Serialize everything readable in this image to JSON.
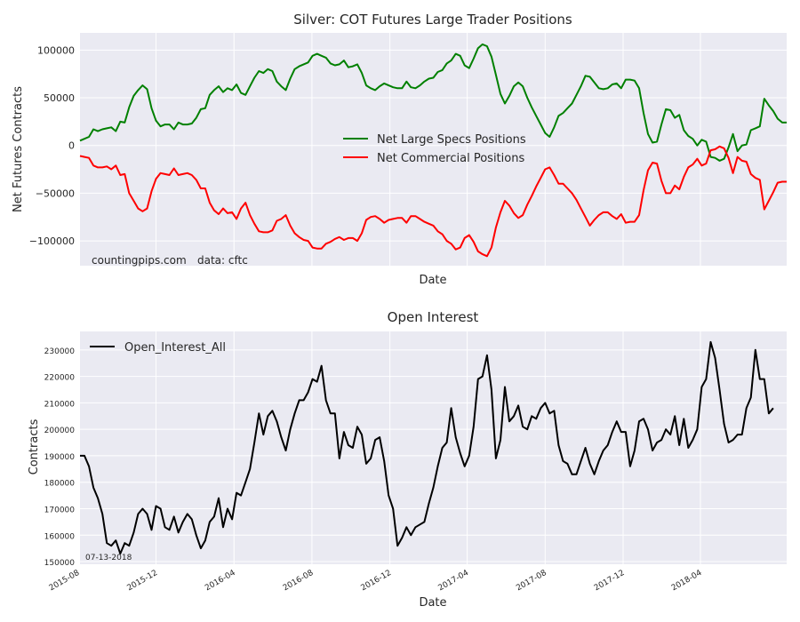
{
  "chart_data": [
    {
      "type": "line",
      "title": "Silver: COT Futures Large Trader Positions",
      "xlabel": "Date",
      "ylabel": "Net Futures Contracts",
      "ylim": [
        -126000,
        118000
      ],
      "yticks": [
        -100000,
        -50000,
        0,
        50000,
        100000
      ],
      "grid": true,
      "legend": "center",
      "annotations": [
        "countingpips.com",
        "data: cftc"
      ],
      "x_start": "2015-08-04",
      "x_step_days": 7,
      "series": [
        {
          "name": "Net Large Specs Positions",
          "color": "#008000",
          "values": [
            5000,
            7000,
            9000,
            17000,
            15000,
            17000,
            18000,
            19000,
            15000,
            25000,
            24000,
            40000,
            52000,
            58000,
            63000,
            59000,
            39000,
            26000,
            20000,
            22000,
            22000,
            17000,
            24000,
            22000,
            22000,
            23000,
            29000,
            38000,
            39000,
            53000,
            58000,
            62000,
            56000,
            60000,
            58000,
            64000,
            55000,
            53000,
            62000,
            71000,
            78000,
            76000,
            80000,
            78000,
            67000,
            62000,
            58000,
            70000,
            80000,
            83000,
            85000,
            87000,
            94000,
            96000,
            94000,
            92000,
            86000,
            84000,
            85000,
            89000,
            82000,
            83000,
            85000,
            76000,
            63000,
            60000,
            58000,
            62000,
            65000,
            63000,
            61000,
            60000,
            60000,
            67000,
            61000,
            60000,
            63000,
            67000,
            70000,
            71000,
            77000,
            79000,
            86000,
            89000,
            96000,
            94000,
            84000,
            81000,
            91000,
            102000,
            106000,
            104000,
            93000,
            74000,
            54000,
            44000,
            52000,
            62000,
            66000,
            62000,
            50000,
            40000,
            31000,
            22000,
            13000,
            9000,
            19000,
            31000,
            34000,
            39000,
            44000,
            53000,
            62000,
            73000,
            72000,
            66000,
            60000,
            59000,
            60000,
            64000,
            65000,
            60000,
            69000,
            69000,
            68000,
            60000,
            34000,
            12000,
            3000,
            4000,
            22000,
            38000,
            37000,
            29000,
            32000,
            16000,
            10000,
            7000,
            0,
            6000,
            4000,
            -12000,
            -13000,
            -16000,
            -14000,
            -2000,
            12000,
            -6000,
            0,
            1000,
            16000,
            18000,
            20000,
            49000,
            42000,
            36000,
            28000,
            24000,
            24000
          ]
        },
        {
          "name": "Net Commercial Positions",
          "color": "#ff0000",
          "values": [
            -11000,
            -12000,
            -13000,
            -21000,
            -23000,
            -23000,
            -22000,
            -25000,
            -21000,
            -31000,
            -30000,
            -50000,
            -58000,
            -66000,
            -69000,
            -66000,
            -48000,
            -35000,
            -29000,
            -30000,
            -31000,
            -24000,
            -31000,
            -30000,
            -29000,
            -31000,
            -36000,
            -45000,
            -45000,
            -60000,
            -68000,
            -72000,
            -66000,
            -71000,
            -70000,
            -77000,
            -66000,
            -60000,
            -73000,
            -82000,
            -90000,
            -91000,
            -91000,
            -89000,
            -79000,
            -77000,
            -73000,
            -84000,
            -92000,
            -96000,
            -99000,
            -100000,
            -107000,
            -108000,
            -108000,
            -103000,
            -101000,
            -98000,
            -96000,
            -99000,
            -97000,
            -97000,
            -100000,
            -92000,
            -78000,
            -75000,
            -74000,
            -77000,
            -81000,
            -78000,
            -77000,
            -76000,
            -76000,
            -81000,
            -74000,
            -74000,
            -77000,
            -80000,
            -82000,
            -84000,
            -90000,
            -93000,
            -100000,
            -103000,
            -109000,
            -107000,
            -97000,
            -94000,
            -101000,
            -111000,
            -114000,
            -116000,
            -107000,
            -86000,
            -70000,
            -58000,
            -63000,
            -71000,
            -76000,
            -73000,
            -62000,
            -53000,
            -43000,
            -34000,
            -25000,
            -23000,
            -31000,
            -40000,
            -40000,
            -45000,
            -50000,
            -57000,
            -66000,
            -75000,
            -84000,
            -78000,
            -73000,
            -70000,
            -70000,
            -74000,
            -77000,
            -72000,
            -81000,
            -80000,
            -80000,
            -73000,
            -47000,
            -26000,
            -18000,
            -19000,
            -37000,
            -50000,
            -50000,
            -42000,
            -46000,
            -33000,
            -23000,
            -20000,
            -14000,
            -21000,
            -19000,
            -5000,
            -4000,
            -1000,
            -3000,
            -13000,
            -29000,
            -12000,
            -16000,
            -17000,
            -30000,
            -34000,
            -36000,
            -67000,
            -58000,
            -49000,
            -39000,
            -38000,
            -38000
          ]
        }
      ]
    },
    {
      "type": "line",
      "title": "Open Interest",
      "xlabel": "Date",
      "ylabel": "Contracts",
      "ylim": [
        149000,
        237000
      ],
      "yticks": [
        150000,
        160000,
        170000,
        180000,
        190000,
        200000,
        210000,
        220000,
        230000
      ],
      "xtick_labels": [
        "2015-08",
        "2015-12",
        "2016-04",
        "2016-08",
        "2016-12",
        "2017-04",
        "2017-08",
        "2017-12",
        "2018-04"
      ],
      "grid": true,
      "legend": "upper left",
      "annotations": [
        "07-13-2018"
      ],
      "x_start": "2015-08-04",
      "x_step_days": 7,
      "series": [
        {
          "name": "Open_Interest_All",
          "color": "#000000",
          "values": [
            190000,
            190000,
            186000,
            178000,
            174000,
            168000,
            157000,
            156000,
            158000,
            153000,
            157000,
            156000,
            161000,
            168000,
            170000,
            168000,
            162000,
            171000,
            170000,
            163000,
            162000,
            167000,
            161000,
            165000,
            168000,
            166000,
            160000,
            155000,
            158000,
            165000,
            167000,
            174000,
            163000,
            170000,
            166000,
            176000,
            175000,
            180000,
            185000,
            195000,
            206000,
            198000,
            205000,
            207000,
            203000,
            197000,
            192000,
            200000,
            206000,
            211000,
            211000,
            214000,
            219000,
            218000,
            224000,
            211000,
            206000,
            206000,
            189000,
            199000,
            194000,
            193000,
            201000,
            198000,
            187000,
            189000,
            196000,
            197000,
            188000,
            175000,
            170000,
            156000,
            159000,
            163000,
            160000,
            163000,
            164000,
            165000,
            172000,
            178000,
            186000,
            193000,
            195000,
            208000,
            197000,
            191000,
            186000,
            190000,
            201000,
            219000,
            220000,
            228000,
            215000,
            189000,
            196000,
            216000,
            203000,
            205000,
            209000,
            201000,
            200000,
            205000,
            204000,
            208000,
            210000,
            206000,
            207000,
            194000,
            188000,
            187000,
            183000,
            183000,
            188000,
            193000,
            187000,
            183000,
            188000,
            192000,
            194000,
            199000,
            203000,
            199000,
            199000,
            186000,
            192000,
            203000,
            204000,
            200000,
            192000,
            195000,
            196000,
            200000,
            198000,
            205000,
            194000,
            204000,
            193000,
            196000,
            200000,
            216000,
            219000,
            233000,
            227000,
            215000,
            202000,
            195000,
            196000,
            198000,
            198000,
            208000,
            212000,
            230000,
            219000,
            219000,
            206000,
            208000
          ]
        }
      ]
    }
  ]
}
